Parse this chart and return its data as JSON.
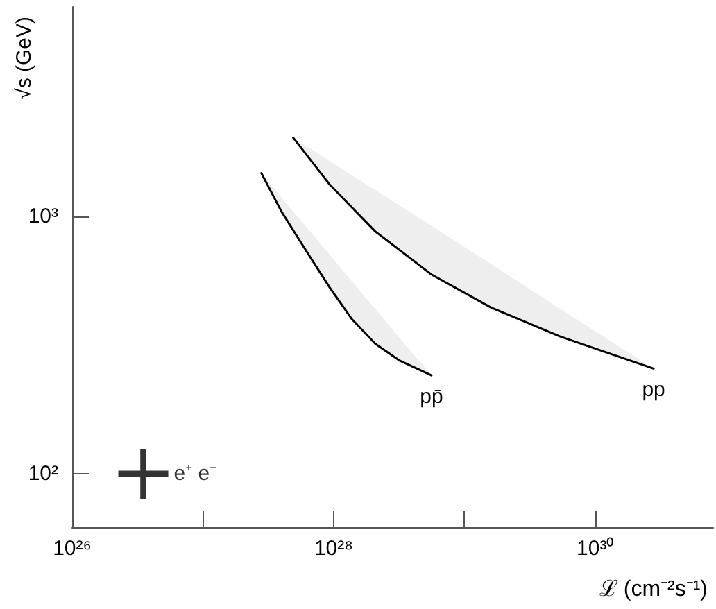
{
  "chart_data": {
    "type": "line",
    "xlabel": "ℒ (cm⁻²s⁻¹)",
    "ylabel": "√s (GeV)",
    "log": "xy",
    "grid": false,
    "line_style": "solid",
    "marker": "none",
    "xlim": [
      1e+26,
      8e+30
    ],
    "xticks": [
      {
        "value": 1e+26,
        "label": "10²⁶"
      },
      {
        "value": 1e+27,
        "label": null
      },
      {
        "value": 1e+28,
        "label": "10²⁸"
      },
      {
        "value": 1e+29,
        "label": null
      },
      {
        "value": 1e+30,
        "label": "10³⁰"
      }
    ],
    "ylim": [
      62,
      6500
    ],
    "yticks": [
      {
        "value": 100,
        "label": "10²"
      },
      {
        "value": 1000,
        "label": "10³"
      }
    ],
    "series": [
      {
        "name": "pp̄",
        "color": "#000000",
        "x": [
          2.8e+27,
          4e+27,
          6.1e+27,
          9.3e+27,
          1.37e+28,
          2.08e+28,
          3.16e+28,
          5.6e+28
        ],
        "values": [
          1470,
          1040,
          740,
          530,
          400,
          320,
          276,
          241
        ],
        "lower": [
          1470,
          1040,
          740,
          530,
          400,
          320,
          276,
          241
        ],
        "upper": [
          1470,
          1180,
          915,
          710,
          560,
          436,
          339,
          241
        ]
      },
      {
        "name": "pp",
        "color": "#000000",
        "x": [
          4.9e+27,
          9.3e+27,
          2.08e+28,
          5.6e+28,
          1.6e+29,
          5.4e+29,
          2.8e+30
        ],
        "values": [
          2020,
          1330,
          873,
          594,
          442,
          341,
          256
        ],
        "lower": [
          2020,
          1330,
          873,
          594,
          442,
          341,
          256
        ],
        "upper": [
          2020,
          1640,
          1264,
          918,
          652,
          437,
          256
        ]
      },
      {
        "name": "e⁺ e⁻",
        "type": "scatter",
        "color": "#000000",
        "marker": "cross",
        "x": [
          3.5e+26
        ],
        "values": [
          100
        ]
      }
    ]
  }
}
